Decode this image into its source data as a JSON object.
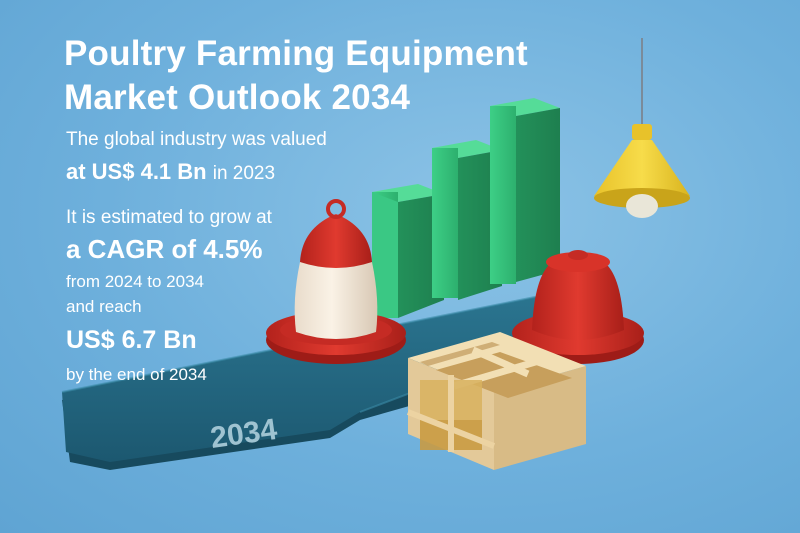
{
  "title_line1": "Poultry Farming Equipment",
  "title_line2": "Market Outlook 2034",
  "stat1_line1": "The global industry was valued",
  "stat1_value": "at US$ 4.1 Bn",
  "stat1_year": "in 2023",
  "stat2_line1": "It is estimated to grow at",
  "stat2_value": "a CAGR of 4.5%",
  "stat2_period": "from 2024 to 2034",
  "stat3_line1": "and reach",
  "stat3_value": "US$ 6.7 Bn",
  "stat3_line2": "by the end of 2034",
  "platform_label": "2034",
  "colors": {
    "background": "#6eb0dc",
    "bars": "#34c07a",
    "feeder_red": "#d9342b",
    "platform": "#1f5f78",
    "lamp": "#f2d13a",
    "crate": "#ecd3a2"
  },
  "icons": [
    "bar-chart-icon",
    "poultry-feeder-icon",
    "hanging-lamp-icon",
    "nesting-box-icon"
  ]
}
